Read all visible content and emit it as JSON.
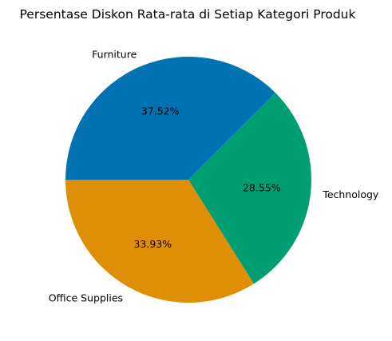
{
  "chart_data": {
    "type": "pie",
    "title": "Persentase Diskon Rata-rata di Setiap Kategori Produk",
    "slices": [
      {
        "label": "Furniture",
        "value": 37.52,
        "value_label": "37.52%",
        "color": "#0173b2"
      },
      {
        "label": "Technology",
        "value": 28.55,
        "value_label": "28.55%",
        "color": "#029e73"
      },
      {
        "label": "Office Supplies",
        "value": 33.93,
        "value_label": "33.93%",
        "color": "#de8f05"
      }
    ],
    "start_angle_deg": 180,
    "direction": "clockwise",
    "legend": "none"
  }
}
